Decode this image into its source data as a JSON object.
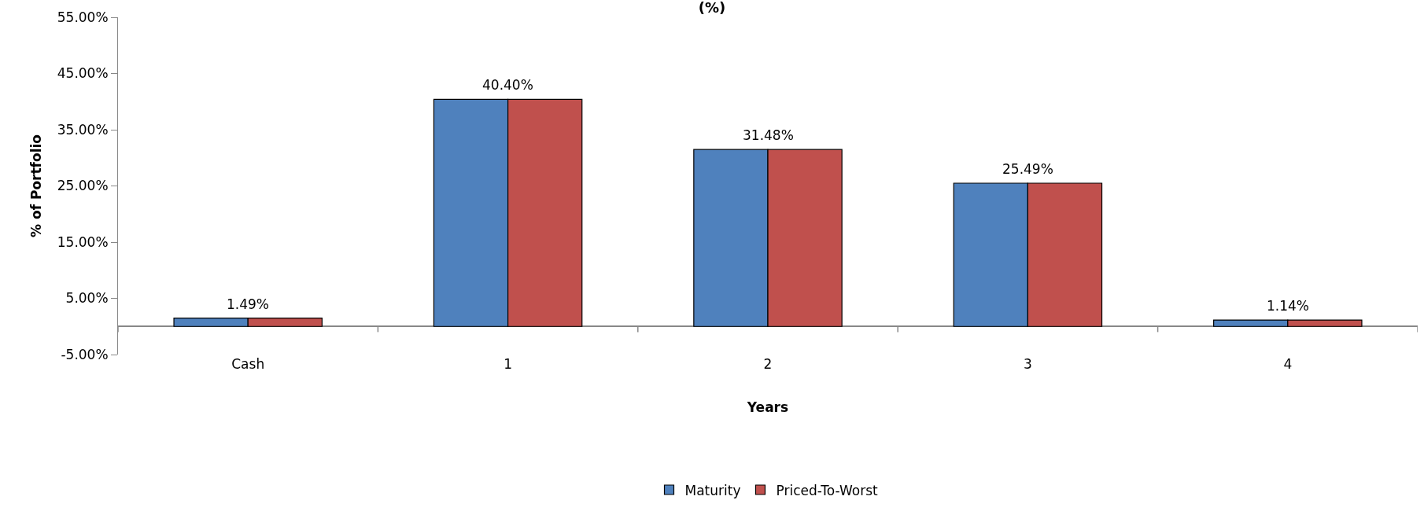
{
  "chart_data": {
    "type": "bar",
    "title": "(%)",
    "xlabel": "Years",
    "ylabel": "% of Portfolio",
    "categories": [
      "Cash",
      "1",
      "2",
      "3",
      "4"
    ],
    "series": [
      {
        "name": "Maturity",
        "color": "#4f81bd",
        "values": [
          1.49,
          40.4,
          31.48,
          25.49,
          1.14
        ],
        "value_labels": [
          "1.49%",
          "40.40%",
          "31.48%",
          "25.49%",
          "1.14%"
        ]
      },
      {
        "name": "Priced-To-Worst",
        "color": "#c0504d",
        "values": [
          1.49,
          40.4,
          31.48,
          25.49,
          1.14
        ]
      }
    ],
    "ylim": [
      -5,
      55
    ],
    "yticks": [
      {
        "value": -5,
        "label": "-5.00%"
      },
      {
        "value": 5,
        "label": "5.00%"
      },
      {
        "value": 15,
        "label": "15.00%"
      },
      {
        "value": 25,
        "label": "25.00%"
      },
      {
        "value": 35,
        "label": "35.00%"
      },
      {
        "value": 45,
        "label": "45.00%"
      },
      {
        "value": 55,
        "label": "55.00%"
      }
    ],
    "legend": "bottom"
  }
}
